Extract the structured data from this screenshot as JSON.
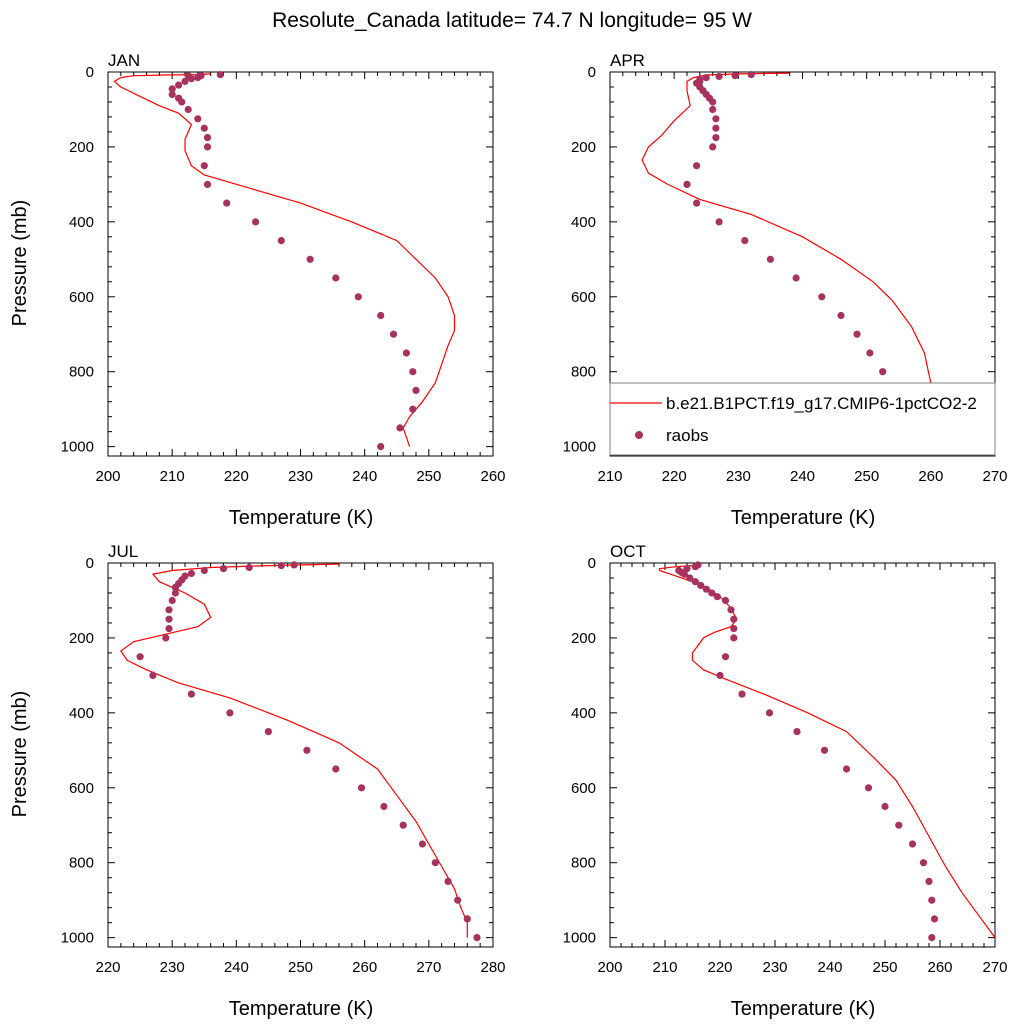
{
  "title": "Resolute_Canada  latitude= 74.7 N longitude= 95 W",
  "colors": {
    "model": "#ff0000",
    "obs": "#a8325e",
    "axis": "#000000",
    "legend_border": "#808080"
  },
  "chart_data": [
    {
      "type": "line",
      "panel": "JAN",
      "xlabel": "Temperature (K)",
      "ylabel": "Pressure (mb)",
      "xlim": [
        200,
        260
      ],
      "ylim": [
        1025,
        0
      ],
      "y_reversed": true,
      "xticks": [
        200,
        210,
        220,
        230,
        240,
        250,
        260
      ],
      "yticks": [
        0,
        200,
        400,
        600,
        800,
        1000
      ],
      "series": [
        {
          "kind": "line",
          "points": [
            [
              216,
              5
            ],
            [
              214,
              7
            ],
            [
              209,
              8
            ],
            [
              204,
              10
            ],
            [
              202,
              15
            ],
            [
              201,
              25
            ],
            [
              202,
              40
            ],
            [
              205,
              65
            ],
            [
              208,
              90
            ],
            [
              211,
              110
            ],
            [
              213,
              140
            ],
            [
              212,
              180
            ],
            [
              212,
              210
            ],
            [
              213,
              250
            ],
            [
              215,
              275
            ],
            [
              222,
              310
            ],
            [
              230,
              350
            ],
            [
              238,
              400
            ],
            [
              245,
              450
            ],
            [
              251,
              550
            ],
            [
              253,
              600
            ],
            [
              254,
              650
            ],
            [
              254,
              690
            ],
            [
              253,
              730
            ],
            [
              252,
              780
            ],
            [
              251,
              830
            ],
            [
              249,
              880
            ],
            [
              247,
              920
            ],
            [
              246,
              950
            ],
            [
              247,
              1000
            ]
          ]
        },
        {
          "kind": "scatter",
          "name": "raobs",
          "points": [
            [
              217.5,
              7
            ],
            [
              214.5,
              10
            ],
            [
              214,
              15
            ],
            [
              213,
              18
            ],
            [
              212.5,
              10
            ],
            [
              212,
              25
            ],
            [
              211,
              35
            ],
            [
              210,
              45
            ],
            [
              210,
              60
            ],
            [
              211,
              70
            ],
            [
              211.5,
              80
            ],
            [
              212.5,
              100
            ],
            [
              214,
              125
            ],
            [
              215,
              150
            ],
            [
              215.5,
              175
            ],
            [
              215.5,
              200
            ],
            [
              215,
              250
            ],
            [
              215.5,
              300
            ],
            [
              218.5,
              350
            ],
            [
              223,
              400
            ],
            [
              227,
              450
            ],
            [
              231.5,
              500
            ],
            [
              235.5,
              550
            ],
            [
              239,
              600
            ],
            [
              242.5,
              650
            ],
            [
              244.5,
              700
            ],
            [
              246.5,
              750
            ],
            [
              247.5,
              800
            ],
            [
              248,
              850
            ],
            [
              247.5,
              900
            ],
            [
              245.5,
              950
            ],
            [
              242.5,
              1000
            ]
          ]
        }
      ]
    },
    {
      "type": "line",
      "panel": "APR",
      "xlabel": "Temperature (K)",
      "ylabel": "",
      "xlim": [
        210,
        270
      ],
      "ylim": [
        1025,
        0
      ],
      "y_reversed": true,
      "xticks": [
        210,
        220,
        230,
        240,
        250,
        260,
        270
      ],
      "yticks": [
        0,
        200,
        400,
        600,
        800,
        1000
      ],
      "series": [
        {
          "kind": "line",
          "points": [
            [
              238,
              3
            ],
            [
              230,
              5
            ],
            [
              225,
              8
            ],
            [
              223,
              15
            ],
            [
              222,
              25
            ],
            [
              222,
              50
            ],
            [
              222.5,
              90
            ],
            [
              220,
              130
            ],
            [
              218,
              170
            ],
            [
              216,
              200
            ],
            [
              215,
              235
            ],
            [
              216,
              270
            ],
            [
              219,
              300
            ],
            [
              224,
              340
            ],
            [
              232,
              380
            ],
            [
              240,
              440
            ],
            [
              246,
              500
            ],
            [
              251,
              560
            ],
            [
              254,
              610
            ],
            [
              257,
              680
            ],
            [
              259,
              750
            ],
            [
              260,
              830
            ],
            [
              261,
              900
            ],
            [
              260,
              940
            ],
            [
              258,
              970
            ],
            [
              256,
              1000
            ]
          ]
        },
        {
          "kind": "scatter",
          "name": "raobs",
          "points": [
            [
              232,
              7
            ],
            [
              229.5,
              10
            ],
            [
              227,
              12
            ],
            [
              225,
              15
            ],
            [
              224,
              20
            ],
            [
              224,
              25
            ],
            [
              223.5,
              30
            ],
            [
              224,
              40
            ],
            [
              224.5,
              50
            ],
            [
              225,
              60
            ],
            [
              225.5,
              70
            ],
            [
              226,
              80
            ],
            [
              226,
              100
            ],
            [
              226.5,
              125
            ],
            [
              226.5,
              150
            ],
            [
              226.5,
              175
            ],
            [
              226,
              200
            ],
            [
              223.5,
              250
            ],
            [
              222,
              300
            ],
            [
              223.5,
              350
            ],
            [
              227,
              400
            ],
            [
              231,
              450
            ],
            [
              235,
              500
            ],
            [
              239,
              550
            ],
            [
              243,
              600
            ],
            [
              246,
              650
            ],
            [
              248.5,
              700
            ],
            [
              250.5,
              750
            ],
            [
              252.5,
              800
            ],
            [
              253.5,
              850
            ],
            [
              253.5,
              900
            ],
            [
              253,
              950
            ],
            [
              251,
              1000
            ]
          ]
        }
      ]
    },
    {
      "type": "line",
      "panel": "JUL",
      "xlabel": "Temperature (K)",
      "ylabel": "Pressure (mb)",
      "xlim": [
        220,
        280
      ],
      "ylim": [
        1025,
        0
      ],
      "y_reversed": true,
      "xticks": [
        220,
        230,
        240,
        250,
        260,
        270,
        280
      ],
      "yticks": [
        0,
        200,
        400,
        600,
        800,
        1000
      ],
      "series": [
        {
          "kind": "line",
          "points": [
            [
              256,
              3
            ],
            [
              250,
              5
            ],
            [
              243,
              8
            ],
            [
              236,
              12
            ],
            [
              230,
              20
            ],
            [
              227,
              30
            ],
            [
              228,
              50
            ],
            [
              232,
              80
            ],
            [
              235,
              110
            ],
            [
              236,
              145
            ],
            [
              234,
              170
            ],
            [
              229,
              190
            ],
            [
              224,
              210
            ],
            [
              222,
              235
            ],
            [
              223,
              260
            ],
            [
              226,
              285
            ],
            [
              231,
              320
            ],
            [
              239,
              360
            ],
            [
              248,
              420
            ],
            [
              256,
              480
            ],
            [
              262,
              550
            ],
            [
              265,
              620
            ],
            [
              268,
              690
            ],
            [
              270,
              750
            ],
            [
              272,
              810
            ],
            [
              274,
              870
            ],
            [
              275,
              920
            ],
            [
              276,
              960
            ],
            [
              276,
              1000
            ]
          ]
        },
        {
          "kind": "scatter",
          "name": "raobs",
          "points": [
            [
              249,
              5
            ],
            [
              247,
              7
            ],
            [
              242,
              12
            ],
            [
              238,
              15
            ],
            [
              235,
              20
            ],
            [
              233,
              28
            ],
            [
              232,
              35
            ],
            [
              231.5,
              45
            ],
            [
              231,
              55
            ],
            [
              230.5,
              65
            ],
            [
              230.5,
              80
            ],
            [
              230,
              100
            ],
            [
              229.5,
              125
            ],
            [
              229.5,
              150
            ],
            [
              229.5,
              175
            ],
            [
              229,
              200
            ],
            [
              225,
              250
            ],
            [
              227,
              300
            ],
            [
              233,
              350
            ],
            [
              239,
              400
            ],
            [
              245,
              450
            ],
            [
              251,
              500
            ],
            [
              255.5,
              550
            ],
            [
              259.5,
              600
            ],
            [
              263,
              650
            ],
            [
              266,
              700
            ],
            [
              269,
              750
            ],
            [
              271,
              800
            ],
            [
              273,
              850
            ],
            [
              274.5,
              900
            ],
            [
              276,
              950
            ],
            [
              277.5,
              1000
            ]
          ]
        }
      ]
    },
    {
      "type": "line",
      "panel": "OCT",
      "xlabel": "Temperature (K)",
      "ylabel": "",
      "xlim": [
        200,
        270
      ],
      "ylim": [
        1025,
        0
      ],
      "y_reversed": true,
      "xticks": [
        200,
        210,
        220,
        230,
        240,
        250,
        260,
        270
      ],
      "yticks": [
        0,
        200,
        400,
        600,
        800,
        1000
      ],
      "series": [
        {
          "kind": "line",
          "points": [
            [
              215,
              7
            ],
            [
              212,
              10
            ],
            [
              209,
              15
            ],
            [
              209,
              20
            ],
            [
              211,
              30
            ],
            [
              215,
              50
            ],
            [
              218,
              70
            ],
            [
              220,
              90
            ],
            [
              222,
              120
            ],
            [
              223,
              150
            ],
            [
              222,
              170
            ],
            [
              219,
              185
            ],
            [
              217,
              200
            ],
            [
              216,
              220
            ],
            [
              215,
              240
            ],
            [
              215,
              260
            ],
            [
              217,
              285
            ],
            [
              221,
              310
            ],
            [
              228,
              350
            ],
            [
              236,
              400
            ],
            [
              243,
              450
            ],
            [
              248,
              520
            ],
            [
              252,
              580
            ],
            [
              255,
              650
            ],
            [
              258,
              730
            ],
            [
              261,
              810
            ],
            [
              264,
              880
            ],
            [
              267,
              940
            ],
            [
              269,
              980
            ],
            [
              270,
              1000
            ]
          ]
        },
        {
          "kind": "scatter",
          "name": "raobs",
          "points": [
            [
              216,
              5
            ],
            [
              215.5,
              10
            ],
            [
              214,
              15
            ],
            [
              212.5,
              20
            ],
            [
              213,
              25
            ],
            [
              213.5,
              30
            ],
            [
              214.5,
              40
            ],
            [
              215.5,
              50
            ],
            [
              216.5,
              60
            ],
            [
              217.5,
              70
            ],
            [
              218.5,
              80
            ],
            [
              219.5,
              90
            ],
            [
              221,
              100
            ],
            [
              222,
              125
            ],
            [
              222.5,
              150
            ],
            [
              222.5,
              175
            ],
            [
              222.5,
              200
            ],
            [
              221,
              250
            ],
            [
              220,
              300
            ],
            [
              224,
              350
            ],
            [
              229,
              400
            ],
            [
              234,
              450
            ],
            [
              239,
              500
            ],
            [
              243,
              550
            ],
            [
              247,
              600
            ],
            [
              250,
              650
            ],
            [
              252.5,
              700
            ],
            [
              255,
              750
            ],
            [
              257,
              800
            ],
            [
              258,
              850
            ],
            [
              258.5,
              900
            ],
            [
              259,
              950
            ],
            [
              258.5,
              1000
            ]
          ]
        }
      ]
    }
  ],
  "legend": {
    "location": "APR panel, lower right",
    "items": [
      {
        "label": "b.e21.B1PCT.f19_g17.CMIP6-1pctCO2-2",
        "marker": "line"
      },
      {
        "label": "raobs",
        "marker": "dot"
      }
    ]
  }
}
